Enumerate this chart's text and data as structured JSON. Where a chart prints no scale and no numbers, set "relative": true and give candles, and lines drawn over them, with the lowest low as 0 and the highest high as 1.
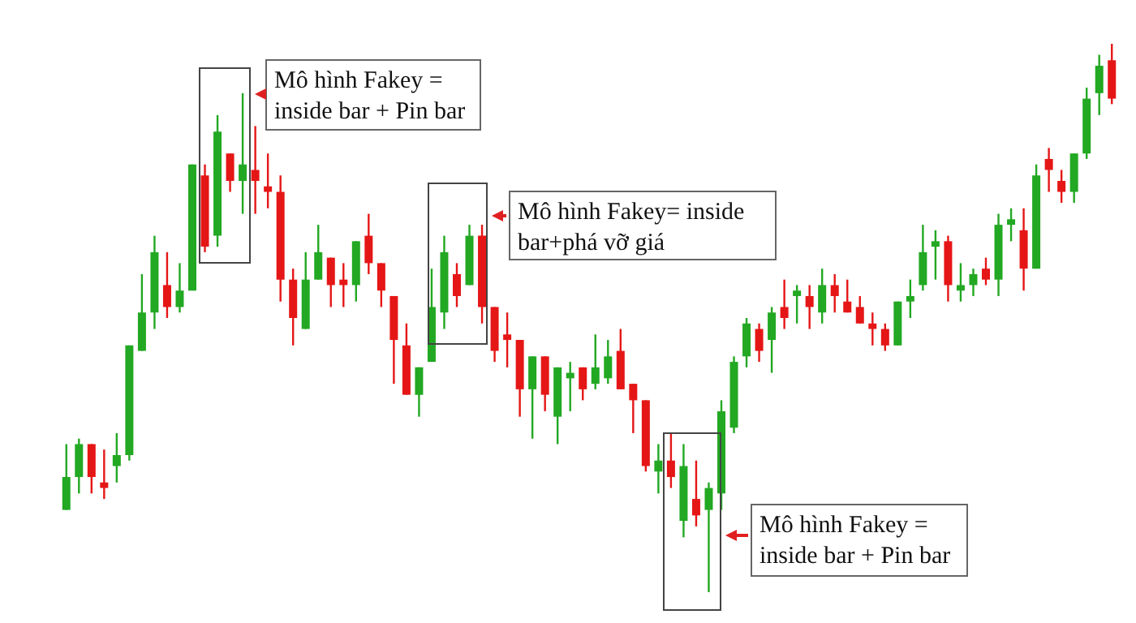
{
  "chart_data": {
    "type": "candlestick",
    "relative": true,
    "categories": [
      null,
      null,
      null,
      null,
      null,
      null,
      null,
      null,
      null,
      null,
      null,
      null,
      null,
      null,
      null,
      null,
      null,
      null,
      null,
      null,
      null,
      null,
      null,
      null,
      null,
      null,
      null,
      null,
      null,
      null,
      null,
      null,
      null,
      null,
      null,
      null,
      null,
      null,
      null,
      null,
      null,
      null,
      null,
      null,
      null,
      null,
      null,
      null,
      null,
      null,
      null,
      null,
      null,
      null,
      null,
      null,
      null,
      null,
      null,
      null,
      null,
      null,
      null,
      null,
      null,
      null,
      null,
      null,
      null,
      null,
      null,
      null,
      null,
      null,
      null,
      null,
      null,
      null,
      null,
      null,
      null,
      null,
      null,
      null
    ],
    "ohlc": [
      [
        0.15,
        0.27,
        0.15,
        0.21
      ],
      [
        0.21,
        0.28,
        0.18,
        0.27
      ],
      [
        0.27,
        0.27,
        0.18,
        0.21
      ],
      [
        0.2,
        0.26,
        0.17,
        0.19
      ],
      [
        0.23,
        0.29,
        0.2,
        0.25
      ],
      [
        0.25,
        0.45,
        0.24,
        0.45
      ],
      [
        0.44,
        0.58,
        0.44,
        0.51
      ],
      [
        0.51,
        0.65,
        0.48,
        0.62
      ],
      [
        0.56,
        0.62,
        0.5,
        0.52
      ],
      [
        0.52,
        0.6,
        0.51,
        0.55
      ],
      [
        0.55,
        0.78,
        0.55,
        0.78
      ],
      [
        0.76,
        0.78,
        0.62,
        0.63
      ],
      [
        0.65,
        0.87,
        0.63,
        0.84
      ],
      [
        0.8,
        0.8,
        0.73,
        0.75
      ],
      [
        0.75,
        0.91,
        0.69,
        0.78
      ],
      [
        0.77,
        0.85,
        0.69,
        0.75
      ],
      [
        0.74,
        0.8,
        0.7,
        0.73
      ],
      [
        0.73,
        0.76,
        0.53,
        0.57
      ],
      [
        0.57,
        0.59,
        0.45,
        0.5
      ],
      [
        0.48,
        0.62,
        0.48,
        0.57
      ],
      [
        0.57,
        0.67,
        0.57,
        0.62
      ],
      [
        0.61,
        0.61,
        0.52,
        0.56
      ],
      [
        0.57,
        0.6,
        0.52,
        0.56
      ],
      [
        0.56,
        0.64,
        0.53,
        0.64
      ],
      [
        0.65,
        0.69,
        0.58,
        0.6
      ],
      [
        0.6,
        0.6,
        0.52,
        0.55
      ],
      [
        0.54,
        0.54,
        0.38,
        0.46
      ],
      [
        0.45,
        0.49,
        0.36,
        0.36
      ],
      [
        0.36,
        0.41,
        0.32,
        0.41
      ],
      [
        0.42,
        0.59,
        0.42,
        0.52
      ],
      [
        0.51,
        0.65,
        0.48,
        0.62
      ],
      [
        0.58,
        0.6,
        0.52,
        0.54
      ],
      [
        0.56,
        0.67,
        0.56,
        0.65
      ],
      [
        0.65,
        0.67,
        0.49,
        0.52
      ],
      [
        0.52,
        0.52,
        0.42,
        0.44
      ],
      [
        0.47,
        0.51,
        0.41,
        0.46
      ],
      [
        0.46,
        0.46,
        0.32,
        0.37
      ],
      [
        0.37,
        0.43,
        0.28,
        0.43
      ],
      [
        0.43,
        0.43,
        0.33,
        0.36
      ],
      [
        0.32,
        0.41,
        0.27,
        0.41
      ],
      [
        0.39,
        0.42,
        0.33,
        0.4
      ],
      [
        0.41,
        0.41,
        0.35,
        0.37
      ],
      [
        0.38,
        0.47,
        0.37,
        0.41
      ],
      [
        0.39,
        0.46,
        0.38,
        0.43
      ],
      [
        0.44,
        0.48,
        0.37,
        0.37
      ],
      [
        0.38,
        0.38,
        0.29,
        0.35
      ],
      [
        0.35,
        0.35,
        0.22,
        0.23
      ],
      [
        0.22,
        0.27,
        0.18,
        0.24
      ],
      [
        0.24,
        0.29,
        0.19,
        0.21
      ],
      [
        0.13,
        0.27,
        0.1,
        0.23
      ],
      [
        0.17,
        0.24,
        0.12,
        0.14
      ],
      [
        0.15,
        0.2,
        0,
        0.19
      ],
      [
        0.18,
        0.35,
        0.15,
        0.33
      ],
      [
        0.3,
        0.43,
        0.29,
        0.42
      ],
      [
        0.43,
        0.5,
        0.41,
        0.49
      ],
      [
        0.48,
        0.49,
        0.42,
        0.44
      ],
      [
        0.46,
        0.52,
        0.4,
        0.51
      ],
      [
        0.52,
        0.57,
        0.48,
        0.5
      ],
      [
        0.54,
        0.56,
        0.49,
        0.55
      ],
      [
        0.54,
        0.56,
        0.48,
        0.52
      ],
      [
        0.51,
        0.59,
        0.49,
        0.56
      ],
      [
        0.56,
        0.58,
        0.51,
        0.54
      ],
      [
        0.53,
        0.57,
        0.51,
        0.51
      ],
      [
        0.52,
        0.54,
        0.49,
        0.49
      ],
      [
        0.49,
        0.51,
        0.45,
        0.48
      ],
      [
        0.48,
        0.49,
        0.44,
        0.45
      ],
      [
        0.45,
        0.53,
        0.45,
        0.53
      ],
      [
        0.53,
        0.57,
        0.5,
        0.54
      ],
      [
        0.56,
        0.67,
        0.55,
        0.62
      ],
      [
        0.63,
        0.66,
        0.57,
        0.64
      ],
      [
        0.64,
        0.65,
        0.53,
        0.56
      ],
      [
        0.55,
        0.6,
        0.53,
        0.56
      ],
      [
        0.56,
        0.59,
        0.54,
        0.58
      ],
      [
        0.59,
        0.61,
        0.56,
        0.57
      ],
      [
        0.57,
        0.69,
        0.54,
        0.67
      ],
      [
        0.67,
        0.7,
        0.64,
        0.68
      ],
      [
        0.66,
        0.7,
        0.55,
        0.59
      ],
      [
        0.59,
        0.78,
        0.59,
        0.76
      ],
      [
        0.79,
        0.81,
        0.73,
        0.77
      ],
      [
        0.75,
        0.77,
        0.71,
        0.73
      ],
      [
        0.73,
        0.8,
        0.71,
        0.8
      ],
      [
        0.8,
        0.92,
        0.79,
        0.9
      ],
      [
        0.91,
        0.98,
        0.87,
        0.96
      ],
      [
        0.97,
        1,
        0.89,
        0.9
      ]
    ],
    "colors": [
      "#22a822",
      "#22a822",
      "#e51616",
      "#e51616",
      "#22a822",
      "#22a822",
      "#22a822",
      "#22a822",
      "#e51616",
      "#22a822",
      "#22a822",
      "#e51616",
      "#22a822",
      "#e51616",
      "#22a822",
      "#e51616",
      "#e51616",
      "#e51616",
      "#e51616",
      "#22a822",
      "#22a822",
      "#e51616",
      "#e51616",
      "#22a822",
      "#e51616",
      "#e51616",
      "#e51616",
      "#e51616",
      "#22a822",
      "#22a822",
      "#22a822",
      "#e51616",
      "#22a822",
      "#e51616",
      "#e51616",
      "#e51616",
      "#e51616",
      "#22a822",
      "#e51616",
      "#22a822",
      "#22a822",
      "#e51616",
      "#22a822",
      "#22a822",
      "#e51616",
      "#e51616",
      "#e51616",
      "#22a822",
      "#e51616",
      "#22a822",
      "#e51616",
      "#22a822",
      "#22a822",
      "#22a822",
      "#22a822",
      "#e51616",
      "#22a822",
      "#e51616",
      "#22a822",
      "#e51616",
      "#22a822",
      "#e51616",
      "#e51616",
      "#e51616",
      "#e51616",
      "#e51616",
      "#22a822",
      "#22a822",
      "#22a822",
      "#22a822",
      "#e51616",
      "#22a822",
      "#22a822",
      "#e51616",
      "#22a822",
      "#22a822",
      "#e51616",
      "#22a822",
      "#e51616",
      "#e51616",
      "#22a822",
      "#22a822",
      "#22a822",
      "#e51616"
    ],
    "annotations": [
      "Mô hình Fakey =\ninside bar + Pin bar",
      "Mô hình Fakey= inside\nbar+phá vỡ giá",
      "Mô hình Fakey =\ninside bar + Pin bar"
    ]
  }
}
